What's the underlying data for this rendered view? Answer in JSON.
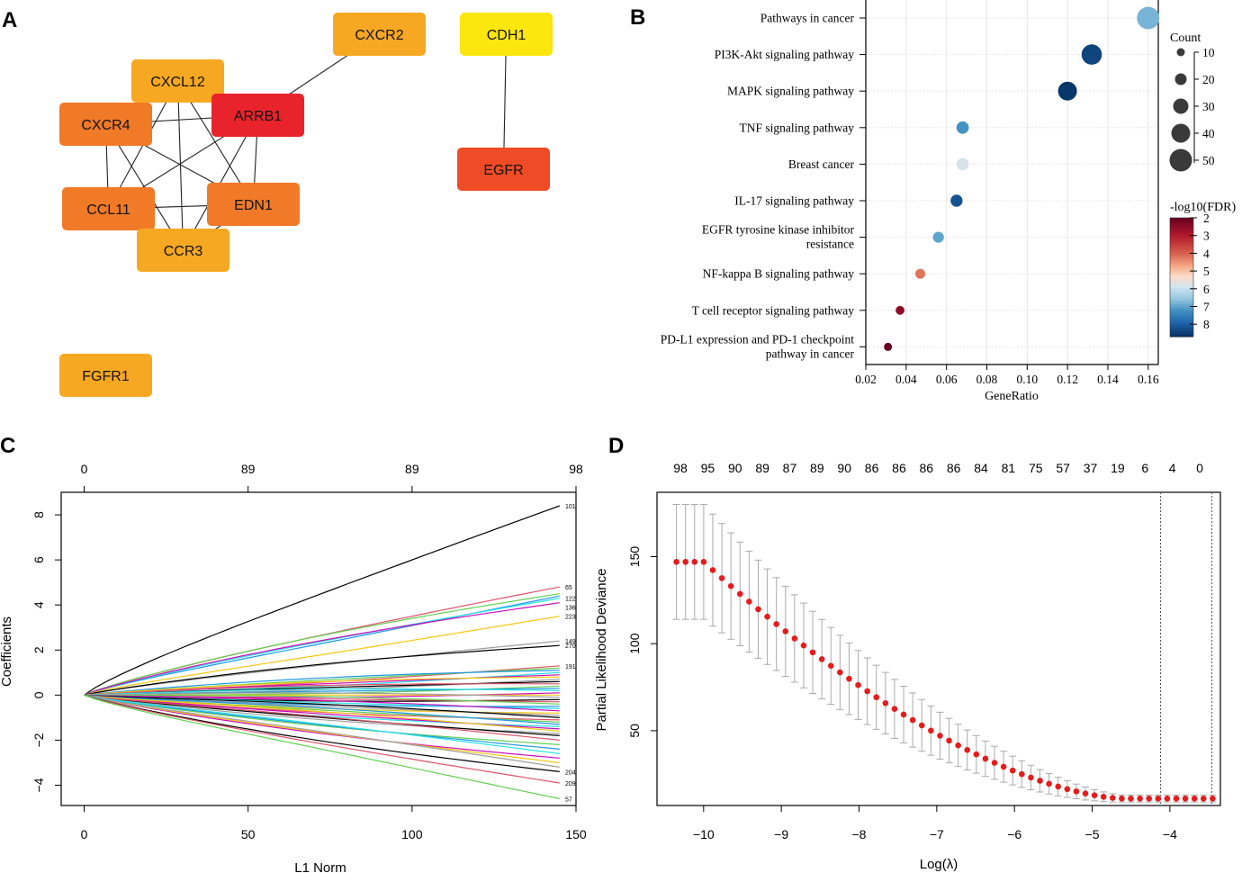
{
  "colors": {
    "red": "#e8232c",
    "red_orange": "#ee4b26",
    "orange": "#f07a28",
    "light_orange": "#f7a823",
    "yellow": "#fbe60e",
    "lasso_point": "#e51c1c",
    "errorbar": "#aaaaaa"
  },
  "panels": [
    {
      "letter": "A"
    },
    {
      "letter": "B"
    },
    {
      "letter": "C"
    },
    {
      "letter": "D"
    }
  ],
  "chart_data": [
    {
      "panel": "A",
      "type": "network",
      "nodes": [
        {
          "id": "CXCR2",
          "color": "light_orange"
        },
        {
          "id": "CDH1",
          "color": "yellow"
        },
        {
          "id": "CXCL12",
          "color": "light_orange"
        },
        {
          "id": "ARRB1",
          "color": "red"
        },
        {
          "id": "CXCR4",
          "color": "orange"
        },
        {
          "id": "CCL11",
          "color": "orange"
        },
        {
          "id": "EDN1",
          "color": "orange"
        },
        {
          "id": "CCR3",
          "color": "light_orange"
        },
        {
          "id": "EGFR",
          "color": "red_orange"
        },
        {
          "id": "FGFR1",
          "color": "light_orange"
        }
      ],
      "edges": [
        [
          "CXCR2",
          "ARRB1"
        ],
        [
          "CDH1",
          "EGFR"
        ],
        [
          "CXCL12",
          "ARRB1"
        ],
        [
          "CXCL12",
          "CXCR4"
        ],
        [
          "CXCL12",
          "CCL11"
        ],
        [
          "CXCL12",
          "EDN1"
        ],
        [
          "CXCL12",
          "CCR3"
        ],
        [
          "CXCR4",
          "ARRB1"
        ],
        [
          "CXCR4",
          "CCL11"
        ],
        [
          "CXCR4",
          "EDN1"
        ],
        [
          "CXCR4",
          "CCR3"
        ],
        [
          "ARRB1",
          "CCL11"
        ],
        [
          "ARRB1",
          "EDN1"
        ],
        [
          "ARRB1",
          "CCR3"
        ],
        [
          "CCL11",
          "EDN1"
        ],
        [
          "CCL11",
          "CCR3"
        ],
        [
          "EDN1",
          "CCR3"
        ]
      ]
    },
    {
      "panel": "B",
      "type": "scatter",
      "title": "",
      "xlabel": "GeneRatio",
      "ylabel": "",
      "xlim": [
        0.02,
        0.165
      ],
      "xticks": [
        "0.02",
        "0.04",
        "0.06",
        "0.08",
        "0.10",
        "0.12",
        "0.14",
        "0.16"
      ],
      "pathways": [
        {
          "name": "Pathways in cancer",
          "ratio": 0.16,
          "count": 50,
          "fdr": 6.8
        },
        {
          "name": "PI3K-Akt signaling pathway",
          "ratio": 0.132,
          "count": 44,
          "fdr": 8.4
        },
        {
          "name": "MAPK signaling pathway",
          "ratio": 0.12,
          "count": 40,
          "fdr": 8.6
        },
        {
          "name": "TNF signaling pathway",
          "ratio": 0.068,
          "count": 22,
          "fdr": 7.2
        },
        {
          "name": "Breast cancer",
          "ratio": 0.068,
          "count": 22,
          "fdr": 5.8
        },
        {
          "name": "IL-17 signaling pathway",
          "ratio": 0.065,
          "count": 21,
          "fdr": 8.2
        },
        {
          "name": "EGFR tyrosine kinase inhibitor",
          "name2": "resistance",
          "ratio": 0.056,
          "count": 18,
          "fdr": 7.0
        },
        {
          "name": "NF-kappa B signaling pathway",
          "ratio": 0.047,
          "count": 15,
          "fdr": 4.2
        },
        {
          "name": "T cell receptor signaling pathway",
          "ratio": 0.037,
          "count": 12,
          "fdr": 2.5
        },
        {
          "name": "PD-L1 expression and PD-1 checkpoint",
          "name2": "pathway in cancer",
          "ratio": 0.031,
          "count": 10,
          "fdr": 2.0
        }
      ],
      "legend_count": {
        "title": "Count",
        "values": [
          "10",
          "20",
          "30",
          "40",
          "50"
        ]
      },
      "legend_fdr": {
        "title": "-log10(FDR)",
        "ticks": [
          "2",
          "3",
          "4",
          "5",
          "6",
          "7",
          "8"
        ],
        "range": [
          2,
          8.7
        ]
      }
    },
    {
      "panel": "C",
      "type": "line",
      "xlabel": "L1 Norm",
      "ylabel": "Coefficients",
      "xlim": [
        -7,
        150
      ],
      "ylim": [
        -4.9,
        9.0
      ],
      "xticks": [
        "0",
        "50",
        "100",
        "150"
      ],
      "yticks": [
        "−4",
        "−2",
        "0",
        "2",
        "4",
        "6",
        "8"
      ],
      "top_ticks": [
        {
          "x": 0,
          "label": "0"
        },
        {
          "x": 50,
          "label": "89"
        },
        {
          "x": 100,
          "label": "89"
        },
        {
          "x": 150,
          "label": "98"
        }
      ],
      "series_end_labels": [
        "101",
        "65",
        "122",
        "223",
        "149",
        "270",
        "191",
        "57",
        "209",
        "204",
        "136"
      ],
      "series_ends": [
        8.4,
        4.8,
        4.5,
        4.4,
        4.3,
        4.1,
        3.5,
        2.4,
        2.2,
        1.3,
        1.2,
        1.1,
        1.0,
        0.9,
        0.8,
        0.7,
        0.6,
        0.5,
        0.4,
        0.3,
        0.2,
        0.1,
        0.0,
        -0.1,
        -0.2,
        -0.3,
        -0.4,
        -0.5,
        -0.6,
        -0.7,
        -0.8,
        -0.9,
        -1.0,
        -1.1,
        -1.2,
        -1.3,
        -1.4,
        -1.5,
        -1.6,
        -1.7,
        -1.8,
        -2.0,
        -2.2,
        -2.4,
        -2.6,
        -2.8,
        -3.0,
        -3.2,
        -3.4,
        -3.9,
        -4.6
      ]
    },
    {
      "panel": "D",
      "type": "scatter",
      "xlabel": "Log(λ)",
      "ylabel": "Partial Likelihood Deviance",
      "xlim": [
        -10.6,
        -3.35
      ],
      "ylim": [
        7,
        187
      ],
      "xticks": [
        "−10",
        "−9",
        "−8",
        "−7",
        "−6",
        "−5",
        "−4"
      ],
      "yticks": [
        "50",
        "100",
        "150"
      ],
      "top_labels": [
        "98",
        "95",
        "90",
        "89",
        "87",
        "89",
        "90",
        "86",
        "86",
        "86",
        "86",
        "84",
        "81",
        "75",
        "57",
        "37",
        "19",
        "6",
        "4",
        "0"
      ],
      "vlines": [
        -4.12,
        -3.46
      ],
      "lambda_start": -10.35,
      "lambda_end": -3.45,
      "n_points": 60,
      "dev_start": 147,
      "dev_min": 11,
      "err_start": 33,
      "err_min": 2
    }
  ]
}
